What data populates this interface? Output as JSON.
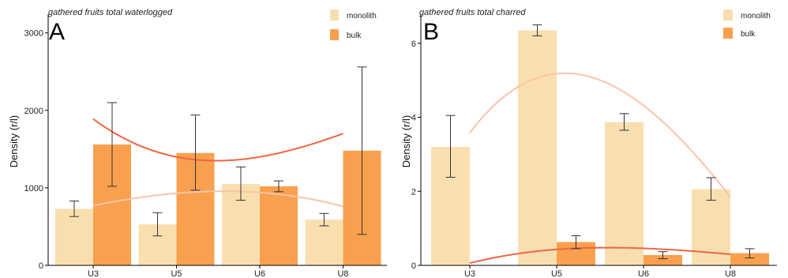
{
  "colors": {
    "monolith": "#F9DFB0",
    "bulk": "#F9A04E",
    "trend_monolith": "#F9C4A8",
    "trend_bulk": "#EE6644",
    "axis": "#000000",
    "error": "#333333"
  },
  "chart_data": [
    {
      "type": "bar",
      "panel_letter": "A",
      "title": "gathered fruits total waterlogged",
      "xlabel": "",
      "ylabel": "Density (r/l)",
      "categories": [
        "U3",
        "U5",
        "U6",
        "U8"
      ],
      "ylim": [
        0,
        3200
      ],
      "yticks": [
        0,
        1000,
        2000,
        3000
      ],
      "grid": false,
      "legend_position": "top-right",
      "series": [
        {
          "name": "monolith",
          "values": [
            730,
            530,
            1050,
            590
          ],
          "err_low": [
            630,
            380,
            840,
            510
          ],
          "err_high": [
            830,
            680,
            1270,
            670
          ]
        },
        {
          "name": "bulk",
          "values": [
            1560,
            1450,
            1020,
            1480
          ],
          "err_low": [
            1020,
            970,
            950,
            400
          ],
          "err_high": [
            2100,
            1940,
            1090,
            2560
          ]
        }
      ],
      "trendlines": [
        {
          "series": "bulk",
          "values": [
            1890,
            1400,
            1400,
            1700
          ]
        },
        {
          "series": "monolith",
          "values": [
            770,
            930,
            940,
            760
          ]
        }
      ]
    },
    {
      "type": "bar",
      "panel_letter": "B",
      "title": "gathered fruits total charred",
      "xlabel": "",
      "ylabel": "Density (r/l)",
      "categories": [
        "U3",
        "U5",
        "U6",
        "U8"
      ],
      "ylim": [
        0,
        6.7
      ],
      "yticks": [
        0,
        2,
        4,
        6
      ],
      "grid": false,
      "legend_position": "top-right",
      "series": [
        {
          "name": "monolith",
          "values": [
            3.2,
            6.35,
            3.87,
            2.06
          ],
          "err_low": [
            2.38,
            6.2,
            3.65,
            1.76
          ],
          "err_high": [
            4.05,
            6.5,
            4.1,
            2.37
          ]
        },
        {
          "name": "bulk",
          "values": [
            0,
            0.63,
            0.28,
            0.33
          ],
          "err_low": [
            null,
            0.45,
            0.18,
            0.2
          ],
          "err_high": [
            null,
            0.8,
            0.37,
            0.45
          ]
        }
      ],
      "trendlines": [
        {
          "series": "monolith",
          "values": [
            3.58,
            5.18,
            4.32,
            1.85
          ]
        },
        {
          "series": "bulk",
          "values": [
            0.06,
            0.43,
            0.46,
            0.3
          ]
        }
      ]
    }
  ]
}
